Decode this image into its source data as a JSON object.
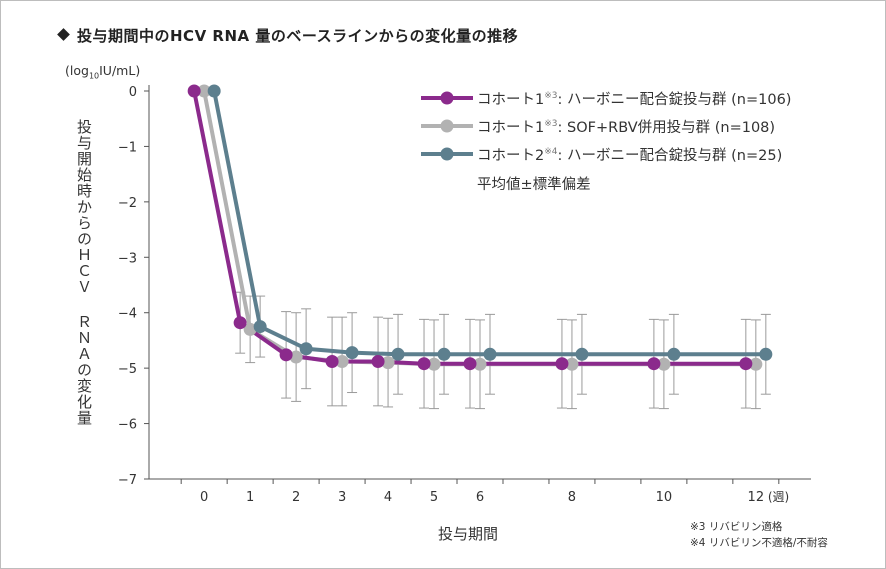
{
  "header": {
    "title": "投与期間中のHCV RNA 量のベースラインからの変化量の推移"
  },
  "axis_labels": {
    "y_unit_prefix": "(log",
    "y_unit_sub": "10",
    "y_unit_suffix": "IU/mL)",
    "y_title": "投与開始時からのＨＣＶ ＲＮＡの変化量",
    "x_title": "投与期間",
    "x_unit": "(週)"
  },
  "legend": {
    "items": [
      {
        "prefix": "コホート1",
        "note": "※3",
        "suffix": ": ハーボニー配合錠投与群 (n=106)"
      },
      {
        "prefix": "コホート1",
        "note": "※3",
        "suffix": ": SOF+RBV併用投与群 (n=108)"
      },
      {
        "prefix": "コホート2",
        "note": "※4",
        "suffix": ": ハーボニー配合錠投与群 (n=25)"
      }
    ],
    "caption": "平均値±標準偏差"
  },
  "footnotes": [
    {
      "mark": "※3",
      "text": "リバビリン適格"
    },
    {
      "mark": "※4",
      "text": "リバビリン不適格/不耐容"
    }
  ],
  "chart_data": {
    "type": "line",
    "x": [
      0,
      1,
      2,
      3,
      4,
      5,
      6,
      8,
      10,
      12
    ],
    "x_tick_labels": [
      "0",
      "1",
      "2",
      "3",
      "4",
      "5",
      "6",
      "8",
      "10",
      "12"
    ],
    "y_tick_labels": [
      "0",
      "−1",
      "−2",
      "−3",
      "−4",
      "−5",
      "−6",
      "−7"
    ],
    "xlim": [
      -1.2,
      13.2
    ],
    "ylim": [
      -7,
      0
    ],
    "yticks": [
      0,
      -1,
      -2,
      -3,
      -4,
      -5,
      -6,
      -7
    ],
    "grid": false,
    "legend_position": "top-right",
    "series": [
      {
        "name": "コホート1: ハーボニー配合錠投与群 (n=106)",
        "color": "#8b2a8c",
        "values": [
          0,
          -4.18,
          -4.76,
          -4.88,
          -4.88,
          -4.92,
          -4.92,
          -4.92,
          -4.92,
          -4.92
        ],
        "sd": [
          0,
          0.55,
          0.78,
          0.8,
          0.8,
          0.8,
          0.8,
          0.8,
          0.8,
          0.8
        ]
      },
      {
        "name": "コホート1: SOF+RBV併用投与群 (n=108)",
        "color": "#b2b2b2",
        "values": [
          0,
          -4.3,
          -4.8,
          -4.88,
          -4.9,
          -4.93,
          -4.93,
          -4.93,
          -4.93,
          -4.93
        ],
        "sd": [
          0,
          0.6,
          0.8,
          0.8,
          0.8,
          0.8,
          0.8,
          0.8,
          0.8,
          0.8
        ]
      },
      {
        "name": "コホート2: ハーボニー配合錠投与群 (n=25)",
        "color": "#5d7f8e",
        "values": [
          0,
          -4.25,
          -4.65,
          -4.72,
          -4.75,
          -4.75,
          -4.75,
          -4.75,
          -4.75,
          -4.75
        ],
        "sd": [
          0,
          0.55,
          0.72,
          0.72,
          0.72,
          0.72,
          0.72,
          0.72,
          0.72,
          0.72
        ]
      }
    ]
  }
}
